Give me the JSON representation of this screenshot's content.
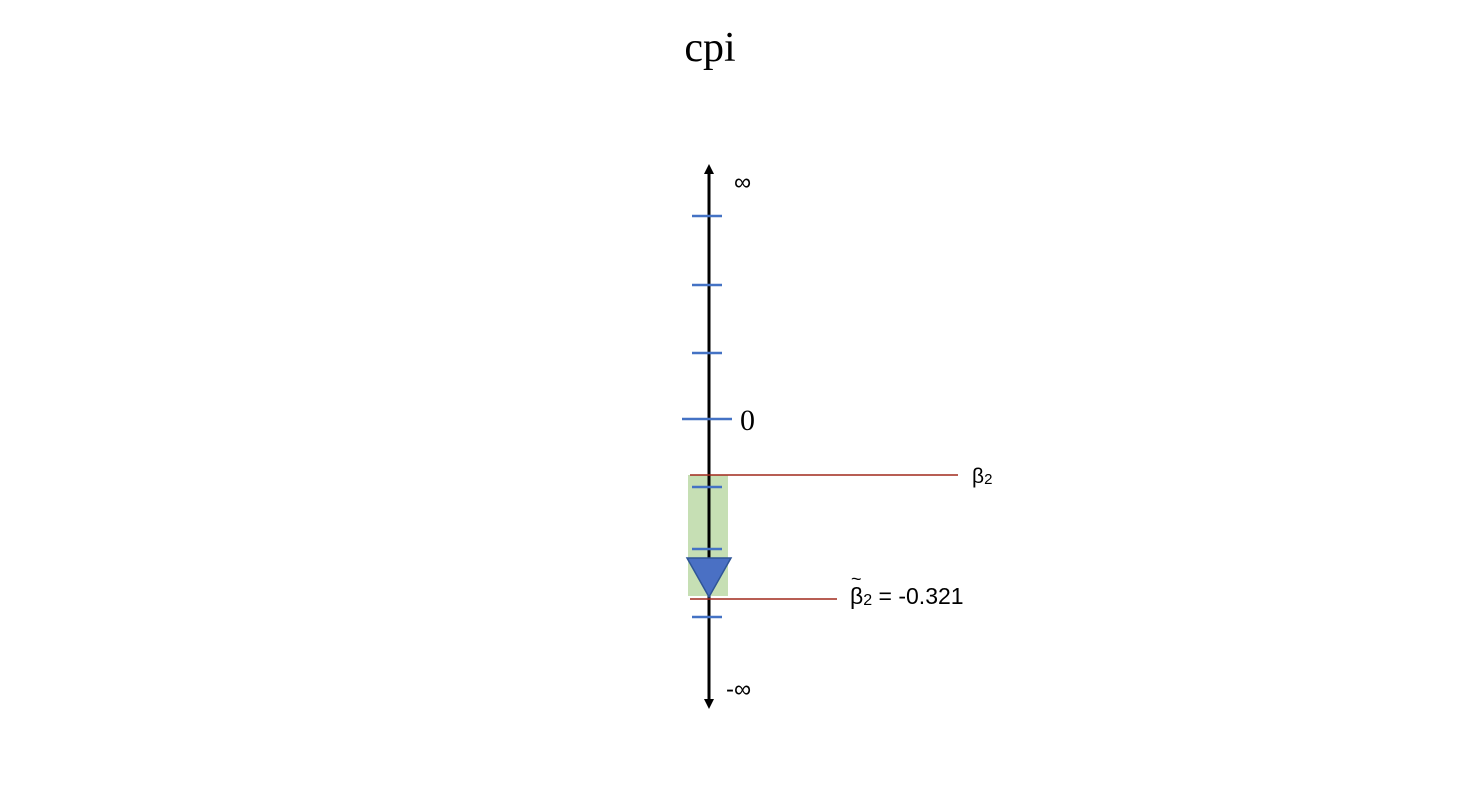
{
  "title": "cpi",
  "axis": {
    "top_label": "∞",
    "bottom_label": "-∞",
    "zero_label": "0"
  },
  "markers": {
    "beta_label": "β",
    "beta_subscript": "2",
    "beta_tilde_label": "β",
    "beta_tilde_accent": "~",
    "beta_tilde_subscript": "2",
    "beta_tilde_value_text": " = -0.321"
  },
  "colors": {
    "axis": "#000000",
    "tick": "#4472c4",
    "marker_line": "#a0281c",
    "interval_fill": "#c6dfb4",
    "triangle_fill": "#4a70c4",
    "triangle_stroke": "#2f5597"
  }
}
